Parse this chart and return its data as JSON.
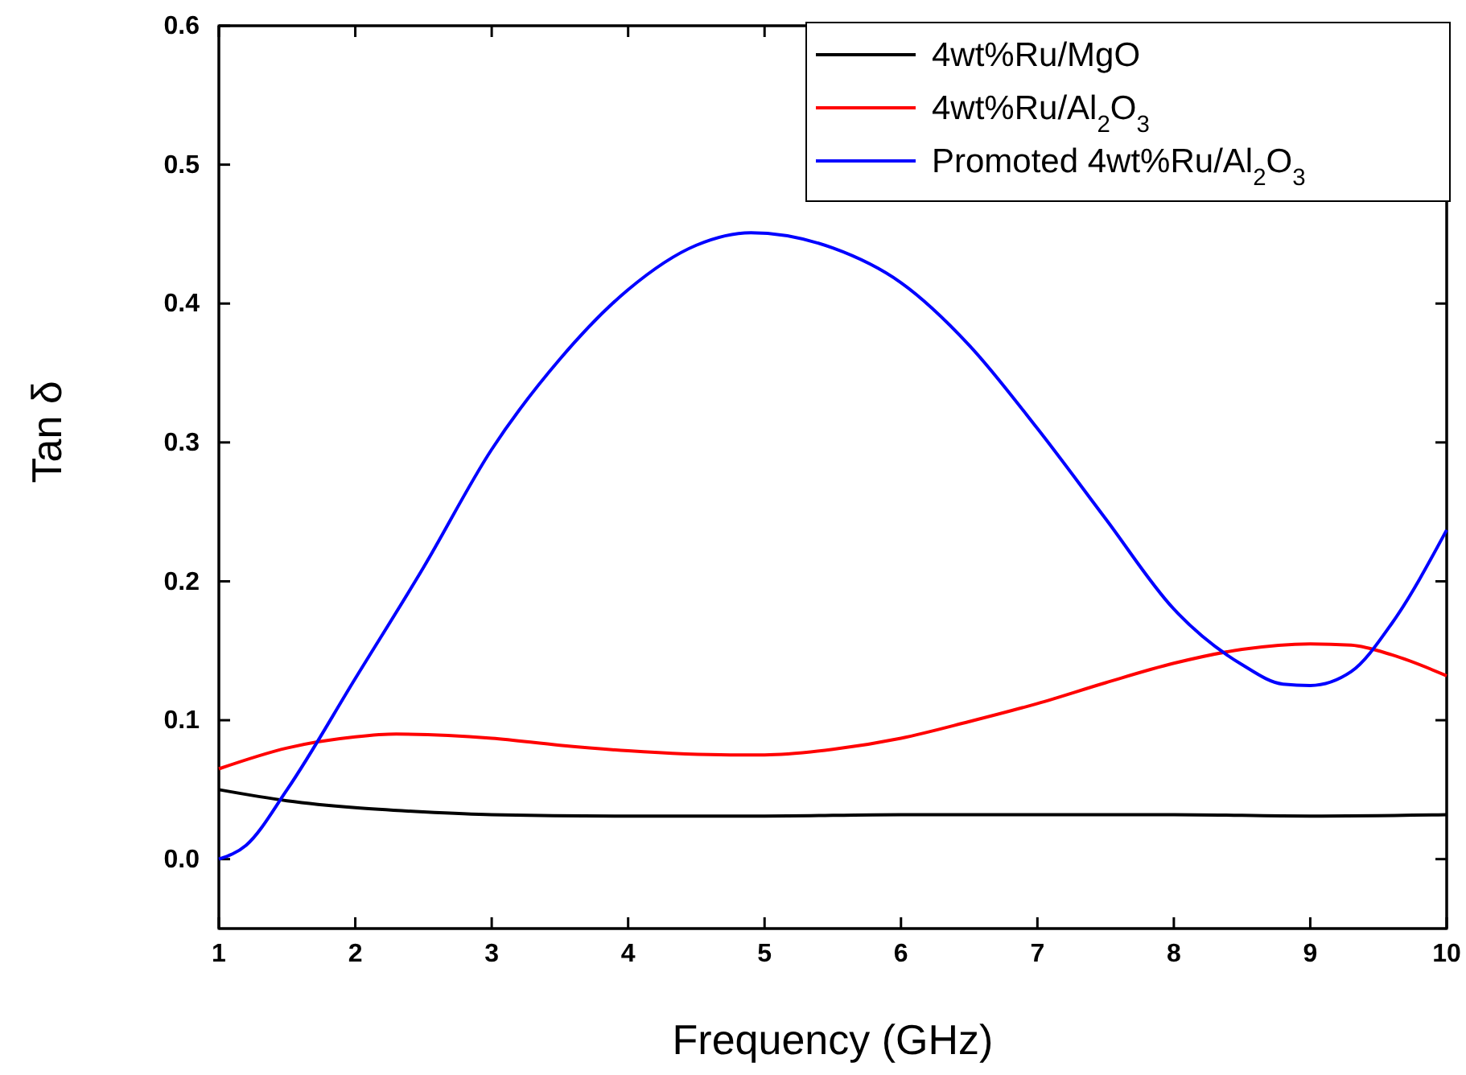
{
  "chart_data": {
    "type": "line",
    "xlabel": "Frequency (GHz)",
    "ylabel": "Tan δ",
    "xlim": [
      1,
      10
    ],
    "xticks": [
      1,
      2,
      3,
      4,
      5,
      6,
      7,
      8,
      9,
      10
    ],
    "ylim": [
      -0.05,
      0.6
    ],
    "yticks": [
      {
        "value": 0,
        "label": "0.0"
      },
      0.1,
      0.2,
      0.3,
      0.4,
      0.5,
      0.6
    ],
    "grid": false,
    "legend": "top right",
    "marker": "none",
    "line_style": "solid",
    "series": [
      {
        "name": "4wt%Ru/MgO",
        "color": "#000000",
        "x": [
          1,
          1.5,
          2,
          2.5,
          3,
          4,
          5,
          6,
          7,
          8,
          9,
          10
        ],
        "values": [
          0.05,
          0.042,
          0.037,
          0.034,
          0.032,
          0.031,
          0.031,
          0.032,
          0.032,
          0.032,
          0.031,
          0.032
        ]
      },
      {
        "name": "4wt%Ru/Al$_{2}$O$_{3}$",
        "color": "#ff0000",
        "x": [
          1,
          1.5,
          2,
          2.3,
          3,
          3.5,
          4,
          4.75,
          5,
          5.5,
          6,
          6.5,
          7,
          7.5,
          8,
          8.5,
          9,
          9.3,
          9.6,
          10
        ],
        "values": [
          0.065,
          0.08,
          0.088,
          0.09,
          0.087,
          0.082,
          0.078,
          0.075,
          0.075,
          0.079,
          0.087,
          0.099,
          0.112,
          0.127,
          0.141,
          0.151,
          0.155,
          0.154,
          0.147,
          0.132
        ]
      },
      {
        "name": "Promoted 4wt%Ru/Al$_{2}$O$_{3}$",
        "color": "#0000ff",
        "x": [
          1,
          1.2,
          1.5,
          2,
          2.5,
          3,
          3.5,
          4,
          4.5,
          4.9,
          5.5,
          6,
          6.5,
          7,
          7.5,
          8,
          8.5,
          8.8,
          9,
          9.3,
          9.6,
          10
        ],
        "values": [
          0,
          0.01,
          0.05,
          0.13,
          0.21,
          0.295,
          0.36,
          0.41,
          0.442,
          0.451,
          0.44,
          0.415,
          0.37,
          0.31,
          0.245,
          0.18,
          0.14,
          0.126,
          0.125,
          0.135,
          0.17,
          0.237
        ]
      }
    ]
  }
}
